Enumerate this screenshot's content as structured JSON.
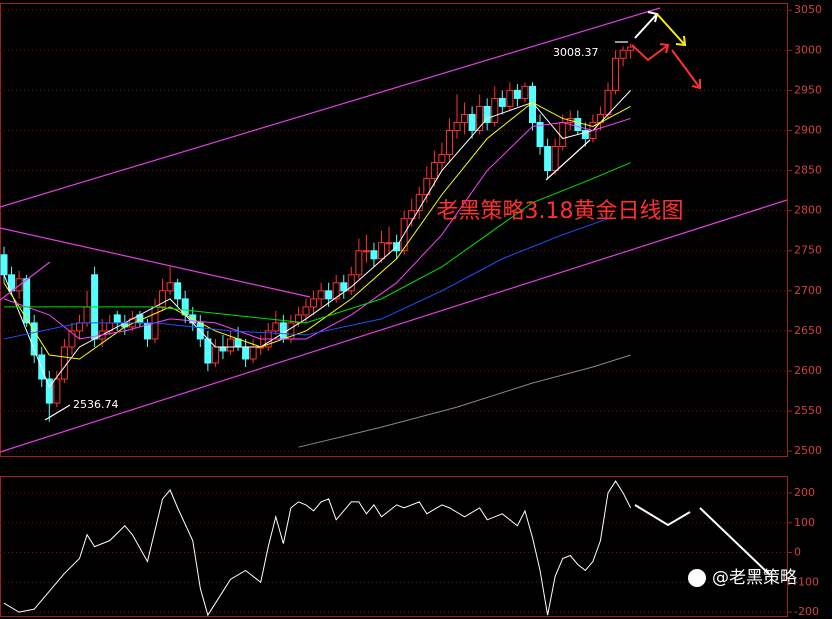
{
  "chart_data": [
    {
      "type": "candlestick",
      "ylim": [
        2494,
        3059
      ],
      "yticks": [
        2500,
        2550,
        2600,
        2650,
        2700,
        2750,
        2800,
        2850,
        2900,
        2950,
        3000,
        3050
      ],
      "ohlc": [
        [
          2745,
          2755,
          2710,
          2720
        ],
        [
          2720,
          2730,
          2695,
          2700
        ],
        [
          2700,
          2725,
          2690,
          2715
        ],
        [
          2715,
          2720,
          2655,
          2660
        ],
        [
          2660,
          2670,
          2610,
          2620
        ],
        [
          2620,
          2630,
          2580,
          2590
        ],
        [
          2590,
          2600,
          2536.74,
          2560
        ],
        [
          2560,
          2600,
          2555,
          2590
        ],
        [
          2590,
          2640,
          2585,
          2630
        ],
        [
          2630,
          2660,
          2620,
          2650
        ],
        [
          2650,
          2670,
          2640,
          2660
        ],
        [
          2660,
          2700,
          2655,
          2680
        ],
        [
          2720,
          2730,
          2630,
          2640
        ],
        [
          2640,
          2665,
          2630,
          2650
        ],
        [
          2650,
          2670,
          2645,
          2660
        ],
        [
          2670,
          2675,
          2650,
          2660
        ],
        [
          2660,
          2670,
          2645,
          2655
        ],
        [
          2655,
          2675,
          2650,
          2665
        ],
        [
          2670,
          2675,
          2655,
          2660
        ],
        [
          2660,
          2665,
          2630,
          2640
        ],
        [
          2640,
          2690,
          2635,
          2680
        ],
        [
          2680,
          2715,
          2675,
          2700
        ],
        [
          2700,
          2730,
          2695,
          2710
        ],
        [
          2710,
          2715,
          2680,
          2690
        ],
        [
          2690,
          2700,
          2660,
          2670
        ],
        [
          2670,
          2680,
          2650,
          2660
        ],
        [
          2660,
          2670,
          2630,
          2640
        ],
        [
          2640,
          2650,
          2600,
          2610
        ],
        [
          2610,
          2640,
          2605,
          2630
        ],
        [
          2630,
          2645,
          2615,
          2625
        ],
        [
          2625,
          2650,
          2620,
          2640
        ],
        [
          2640,
          2655,
          2625,
          2630
        ],
        [
          2630,
          2640,
          2605,
          2615
        ],
        [
          2615,
          2640,
          2610,
          2630
        ],
        [
          2630,
          2645,
          2620,
          2630
        ],
        [
          2630,
          2660,
          2625,
          2650
        ],
        [
          2650,
          2675,
          2645,
          2660
        ],
        [
          2660,
          2670,
          2635,
          2640
        ],
        [
          2640,
          2670,
          2635,
          2660
        ],
        [
          2660,
          2680,
          2655,
          2670
        ],
        [
          2670,
          2690,
          2660,
          2680
        ],
        [
          2680,
          2700,
          2670,
          2690
        ],
        [
          2690,
          2710,
          2680,
          2700
        ],
        [
          2700,
          2710,
          2680,
          2690
        ],
        [
          2690,
          2720,
          2685,
          2710
        ],
        [
          2710,
          2720,
          2690,
          2700
        ],
        [
          2700,
          2730,
          2695,
          2720
        ],
        [
          2720,
          2765,
          2715,
          2750
        ],
        [
          2750,
          2770,
          2735,
          2750
        ],
        [
          2750,
          2760,
          2730,
          2740
        ],
        [
          2740,
          2775,
          2735,
          2760
        ],
        [
          2760,
          2780,
          2745,
          2760
        ],
        [
          2760,
          2770,
          2740,
          2750
        ],
        [
          2750,
          2800,
          2745,
          2790
        ],
        [
          2790,
          2815,
          2780,
          2800
        ],
        [
          2800,
          2830,
          2790,
          2820
        ],
        [
          2820,
          2855,
          2810,
          2840
        ],
        [
          2840,
          2875,
          2830,
          2860
        ],
        [
          2860,
          2885,
          2850,
          2870
        ],
        [
          2870,
          2915,
          2860,
          2900
        ],
        [
          2900,
          2945,
          2890,
          2910
        ],
        [
          2910,
          2935,
          2895,
          2920
        ],
        [
          2920,
          2930,
          2890,
          2900
        ],
        [
          2900,
          2945,
          2895,
          2930
        ],
        [
          2930,
          2940,
          2900,
          2910
        ],
        [
          2910,
          2955,
          2905,
          2940
        ],
        [
          2940,
          2950,
          2920,
          2930
        ],
        [
          2930,
          2960,
          2925,
          2950
        ],
        [
          2950,
          2958,
          2930,
          2940
        ],
        [
          2940,
          2960,
          2935,
          2955
        ],
        [
          2955,
          2960,
          2900,
          2910
        ],
        [
          2910,
          2920,
          2870,
          2880
        ],
        [
          2880,
          2890,
          2840,
          2850
        ],
        [
          2850,
          2890,
          2845,
          2880
        ],
        [
          2880,
          2920,
          2875,
          2910
        ],
        [
          2910,
          2925,
          2900,
          2915
        ],
        [
          2915,
          2925,
          2895,
          2900
        ],
        [
          2900,
          2910,
          2880,
          2890
        ],
        [
          2890,
          2920,
          2885,
          2910
        ],
        [
          2910,
          2930,
          2900,
          2920
        ],
        [
          2920,
          2960,
          2915,
          2950
        ],
        [
          2950,
          3000,
          2945,
          2990
        ],
        [
          2990,
          3005,
          2980,
          3000
        ],
        [
          3000,
          3008.37,
          2990,
          3004
        ]
      ],
      "up_color": "#ff3232",
      "down_color": "#54ffff",
      "series": [
        {
          "color": "#ffffff",
          "x": [
            0,
            6,
            10,
            16,
            22,
            28,
            34,
            40,
            46,
            52,
            58,
            64,
            70,
            74,
            78,
            83
          ],
          "values": [
            2720,
            2580,
            2630,
            2660,
            2690,
            2630,
            2630,
            2665,
            2705,
            2755,
            2850,
            2915,
            2935,
            2890,
            2900,
            2950
          ]
        },
        {
          "color": "#ffff00",
          "x": [
            0,
            6,
            10,
            16,
            22,
            28,
            34,
            40,
            46,
            52,
            58,
            64,
            70,
            74,
            78,
            83
          ],
          "values": [
            2710,
            2620,
            2615,
            2655,
            2680,
            2650,
            2630,
            2650,
            2690,
            2740,
            2820,
            2890,
            2935,
            2915,
            2905,
            2930
          ]
        },
        {
          "color": "#ff40ff",
          "x": [
            0,
            6,
            10,
            16,
            22,
            28,
            34,
            40,
            46,
            52,
            58,
            64,
            70,
            74,
            78,
            83
          ],
          "values": [
            2690,
            2670,
            2640,
            2650,
            2665,
            2660,
            2640,
            2640,
            2670,
            2710,
            2770,
            2850,
            2905,
            2910,
            2900,
            2915
          ]
        },
        {
          "color": "#00e000",
          "x": [
            0,
            10,
            20,
            30,
            40,
            50,
            58,
            64,
            70,
            78,
            83
          ],
          "values": [
            2680,
            2680,
            2680,
            2670,
            2660,
            2690,
            2730,
            2770,
            2810,
            2840,
            2860
          ]
        },
        {
          "color": "#2050ff",
          "x": [
            0,
            10,
            20,
            30,
            40,
            50,
            58,
            66,
            74,
            80
          ],
          "values": [
            2640,
            2660,
            2660,
            2650,
            2645,
            2665,
            2700,
            2740,
            2770,
            2790
          ]
        },
        {
          "color": "#888888",
          "x": [
            39,
            50,
            60,
            70,
            78,
            83
          ],
          "values": [
            2505,
            2530,
            2555,
            2585,
            2605,
            2620
          ]
        }
      ],
      "annotations": [
        {
          "label": "3008.37",
          "value": 3008.37,
          "index": 83
        },
        {
          "label": "2536.74",
          "value": 2536.74,
          "index": 6
        }
      ],
      "title": "老黑策略3.18黄金日线图"
    },
    {
      "type": "line",
      "ylim": [
        -213,
        257
      ],
      "yticks": [
        200,
        100,
        0,
        -100,
        -200
      ],
      "color": "#ffffff",
      "x": [
        0,
        2,
        4,
        6,
        8,
        10,
        11,
        12,
        14,
        16,
        17,
        19,
        21,
        22,
        23,
        25,
        26,
        27,
        28,
        30,
        32,
        34,
        35,
        36,
        37,
        38,
        39,
        40,
        41,
        42,
        43,
        44,
        45,
        46,
        47,
        48,
        49,
        50,
        52,
        53,
        55,
        56,
        58,
        59,
        61,
        63,
        64,
        66,
        68,
        69,
        70,
        71,
        72,
        73,
        74,
        75,
        76,
        77,
        78,
        79,
        80,
        81,
        82,
        83
      ],
      "values": [
        -170,
        -200,
        -190,
        -130,
        -70,
        -20,
        60,
        20,
        40,
        90,
        60,
        -30,
        180,
        210,
        150,
        40,
        -120,
        -210,
        -170,
        -90,
        -60,
        -100,
        20,
        120,
        30,
        150,
        170,
        160,
        140,
        170,
        180,
        110,
        140,
        170,
        170,
        130,
        160,
        120,
        160,
        150,
        170,
        130,
        160,
        150,
        120,
        150,
        110,
        130,
        90,
        140,
        50,
        -60,
        -210,
        -80,
        -20,
        -10,
        -40,
        -60,
        -30,
        40,
        200,
        240,
        200,
        150
      ]
    }
  ],
  "watermark": "@老黑策略"
}
